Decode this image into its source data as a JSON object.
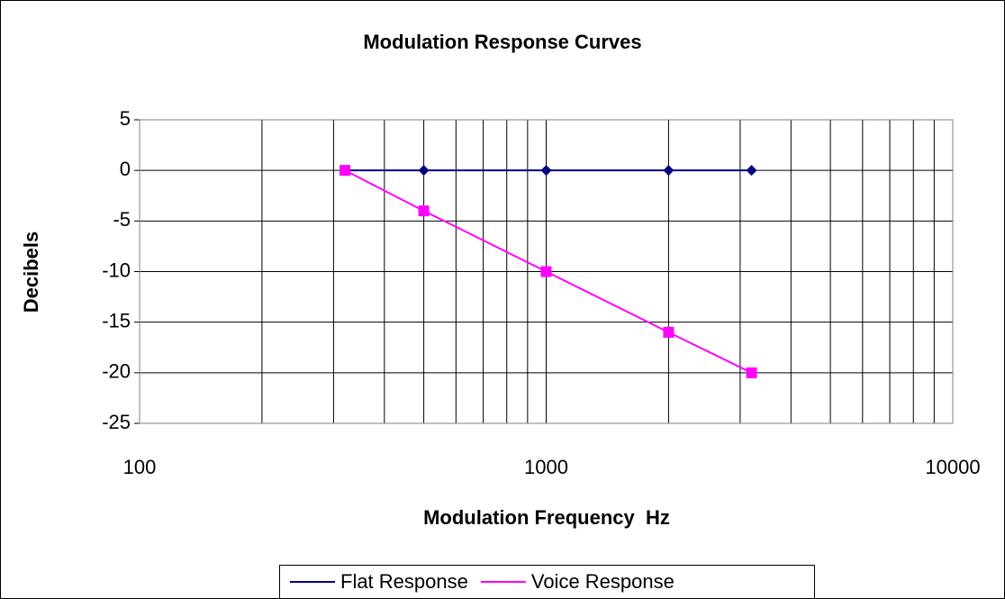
{
  "chart_data": {
    "type": "line",
    "title": "Modulation Response Curves",
    "x_label": "Modulation Frequency  Hz",
    "y_label": "Decibels",
    "x": [
      320,
      500,
      1000,
      2000,
      3200
    ],
    "series": [
      {
        "name": "Flat Response",
        "color": "#000080",
        "marker": "diamond",
        "values": [
          0,
          0,
          0,
          0,
          0
        ]
      },
      {
        "name": "Voice Response",
        "color": "#ff00ff",
        "marker": "square",
        "values": [
          0,
          -4,
          -10,
          -16,
          -20
        ]
      }
    ],
    "x_log": true,
    "xlim": [
      100,
      10000
    ],
    "xticks": [
      100,
      1000,
      10000
    ],
    "x_minor_gridlines": [
      200,
      300,
      400,
      500,
      600,
      700,
      800,
      900,
      2000,
      3000,
      4000,
      5000,
      6000,
      7000,
      8000,
      9000
    ],
    "ylim": [
      -25,
      5
    ],
    "yticks": [
      -25,
      -20,
      -15,
      -10,
      -5,
      0,
      5
    ],
    "grid": true,
    "legend": "bottom"
  }
}
